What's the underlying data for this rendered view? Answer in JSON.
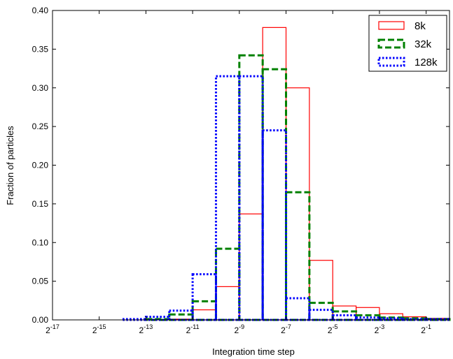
{
  "chart_data": {
    "type": "histogram",
    "xlabel": "Integration time step",
    "ylabel": "Fraction of particles",
    "x_scale": "log2",
    "x_exponent_range": [
      -17,
      0
    ],
    "bin_width_exponent": 1,
    "ylim": [
      0,
      0.4
    ],
    "x_tick_exponents": [
      -17,
      -15,
      -13,
      -11,
      -9,
      -7,
      -5,
      -3,
      -1
    ],
    "x_tick_base": "2",
    "y_ticks": [
      "0.00",
      "0.05",
      "0.10",
      "0.15",
      "0.20",
      "0.25",
      "0.30",
      "0.35",
      "0.40"
    ],
    "grid": false,
    "legend_position": "top-right",
    "series": [
      {
        "name": "8k",
        "color": "#ff0000",
        "dash": "solid",
        "bin_start_exponents": [
          -12,
          -11,
          -10,
          -9,
          -8,
          -7,
          -6,
          -5,
          -4,
          -3,
          -2,
          -1
        ],
        "values": [
          0.001,
          0.013,
          0.043,
          0.137,
          0.378,
          0.3,
          0.077,
          0.018,
          0.016,
          0.008,
          0.004,
          0.002
        ]
      },
      {
        "name": "32k",
        "color": "#008000",
        "dash": "dashed",
        "bin_start_exponents": [
          -13,
          -12,
          -11,
          -10,
          -9,
          -8,
          -7,
          -6,
          -5,
          -4,
          -3,
          -2,
          -1
        ],
        "values": [
          0.001,
          0.007,
          0.024,
          0.092,
          0.342,
          0.324,
          0.165,
          0.022,
          0.011,
          0.006,
          0.003,
          0.002,
          0.001
        ]
      },
      {
        "name": "128k",
        "color": "#0000ff",
        "dash": "dotted",
        "bin_start_exponents": [
          -14,
          -13,
          -12,
          -11,
          -10,
          -9,
          -8,
          -7,
          -6,
          -5,
          -4,
          -3,
          -2,
          -1
        ],
        "values": [
          0.001,
          0.004,
          0.012,
          0.059,
          0.315,
          0.315,
          0.245,
          0.028,
          0.013,
          0.006,
          0.003,
          0.002,
          0.001,
          0.001
        ]
      }
    ]
  }
}
